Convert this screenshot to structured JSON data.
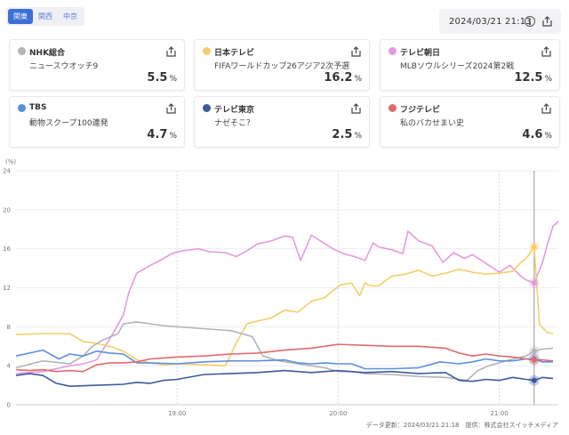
{
  "region_tabs": [
    {
      "label": "関東",
      "active": true
    },
    {
      "label": "関西",
      "active": false
    },
    {
      "label": "中京",
      "active": false
    }
  ],
  "timestamp": "2024/03/21 21:13",
  "icons": {
    "info": "info-icon",
    "share": "share-icon"
  },
  "channels": [
    {
      "name": "NHK総合",
      "program": "ニュースウオッチ9",
      "rating": "5.5",
      "unit": "%",
      "color": "#b4b4b9"
    },
    {
      "name": "日本テレビ",
      "program": "FIFAワールドカップ26アジア2次予選",
      "rating": "16.2",
      "unit": "%",
      "color": "#f5cf66"
    },
    {
      "name": "テレビ朝日",
      "program": "MLBソウルシリーズ2024第2戦",
      "rating": "12.5",
      "unit": "%",
      "color": "#e59add"
    },
    {
      "name": "TBS",
      "program": "動物スクープ100連発",
      "rating": "4.7",
      "unit": "%",
      "color": "#5b8fe0"
    },
    {
      "name": "テレビ東京",
      "program": "ナゼそこ？",
      "rating": "2.5",
      "unit": "%",
      "color": "#3d5a9e"
    },
    {
      "name": "フジテレビ",
      "program": "私のバカせまい史",
      "rating": "4.6",
      "unit": "%",
      "color": "#e06b6b"
    }
  ],
  "chart_data": {
    "type": "line",
    "ylabel": "(%)",
    "ylim": [
      0,
      24
    ],
    "yticks": [
      "0",
      "4",
      "8",
      "12",
      "16",
      "20",
      "24"
    ],
    "xticks": [
      {
        "label": "19:00",
        "t": 60
      },
      {
        "label": "20:00",
        "t": 120
      },
      {
        "label": "21:00",
        "t": 180
      }
    ],
    "x_range_minutes": [
      0,
      191
    ],
    "cursor_t": 193,
    "grid": true,
    "series": [
      {
        "name": "テレビ朝日",
        "color": "#e59add",
        "points": [
          [
            0,
            3.2
          ],
          [
            10,
            3.4
          ],
          [
            20,
            4.0
          ],
          [
            25,
            4.2
          ],
          [
            30,
            4.6
          ],
          [
            35,
            6.8
          ],
          [
            40,
            9.2
          ],
          [
            42,
            11.5
          ],
          [
            45,
            13.5
          ],
          [
            50,
            14.3
          ],
          [
            55,
            15.0
          ],
          [
            58,
            15.5
          ],
          [
            62,
            15.8
          ],
          [
            68,
            16.0
          ],
          [
            72,
            15.7
          ],
          [
            78,
            15.6
          ],
          [
            82,
            15.2
          ],
          [
            86,
            15.8
          ],
          [
            90,
            16.5
          ],
          [
            95,
            16.8
          ],
          [
            100,
            17.3
          ],
          [
            103,
            17.2
          ],
          [
            106,
            14.8
          ],
          [
            110,
            17.4
          ],
          [
            114,
            16.7
          ],
          [
            118,
            16.0
          ],
          [
            122,
            15.5
          ],
          [
            126,
            15.2
          ],
          [
            130,
            14.8
          ],
          [
            133,
            16.6
          ],
          [
            135,
            16.2
          ],
          [
            140,
            15.9
          ],
          [
            144,
            15.5
          ],
          [
            146,
            17.8
          ],
          [
            150,
            16.8
          ],
          [
            155,
            16.3
          ],
          [
            159,
            14.6
          ],
          [
            163,
            15.6
          ],
          [
            167,
            15.0
          ],
          [
            170,
            15.4
          ],
          [
            175,
            14.5
          ],
          [
            180,
            13.6
          ],
          [
            184,
            14.3
          ],
          [
            188,
            13.2
          ],
          [
            190,
            12.8
          ],
          [
            193,
            12.5
          ],
          [
            196,
            14.5
          ],
          [
            198,
            16.5
          ],
          [
            200,
            18.3
          ],
          [
            202,
            18.8
          ]
        ]
      },
      {
        "name": "日本テレビ",
        "color": "#f5cf66",
        "points": [
          [
            0,
            7.2
          ],
          [
            10,
            7.3
          ],
          [
            20,
            7.3
          ],
          [
            25,
            6.5
          ],
          [
            30,
            6.3
          ],
          [
            35,
            6.0
          ],
          [
            40,
            5.5
          ],
          [
            45,
            4.6
          ],
          [
            50,
            4.3
          ],
          [
            55,
            4.1
          ],
          [
            60,
            4.2
          ],
          [
            70,
            4.1
          ],
          [
            78,
            4.0
          ],
          [
            82,
            6.3
          ],
          [
            86,
            8.3
          ],
          [
            90,
            8.6
          ],
          [
            95,
            8.9
          ],
          [
            100,
            9.7
          ],
          [
            105,
            9.5
          ],
          [
            110,
            10.6
          ],
          [
            115,
            11.0
          ],
          [
            118,
            11.7
          ],
          [
            121,
            12.3
          ],
          [
            125,
            12.5
          ],
          [
            128,
            11.2
          ],
          [
            130,
            12.5
          ],
          [
            132,
            12.2
          ],
          [
            135,
            12.2
          ],
          [
            140,
            13.2
          ],
          [
            145,
            13.4
          ],
          [
            150,
            13.8
          ],
          [
            155,
            13.2
          ],
          [
            160,
            13.5
          ],
          [
            165,
            13.9
          ],
          [
            170,
            13.6
          ],
          [
            175,
            13.4
          ],
          [
            180,
            13.5
          ],
          [
            185,
            13.7
          ],
          [
            188,
            14.6
          ],
          [
            190,
            15.0
          ],
          [
            193,
            16.2
          ],
          [
            195,
            8.2
          ],
          [
            198,
            7.4
          ],
          [
            200,
            7.3
          ]
        ]
      },
      {
        "name": "NHK総合",
        "color": "#b4b4b9",
        "points": [
          [
            0,
            3.8
          ],
          [
            10,
            4.5
          ],
          [
            20,
            4.2
          ],
          [
            25,
            5.0
          ],
          [
            28,
            5.9
          ],
          [
            32,
            6.6
          ],
          [
            38,
            7.3
          ],
          [
            40,
            8.3
          ],
          [
            45,
            8.5
          ],
          [
            50,
            8.3
          ],
          [
            55,
            8.1
          ],
          [
            60,
            8.0
          ],
          [
            70,
            7.8
          ],
          [
            80,
            7.6
          ],
          [
            88,
            7.0
          ],
          [
            92,
            5.0
          ],
          [
            98,
            4.5
          ],
          [
            105,
            4.2
          ],
          [
            110,
            4.0
          ],
          [
            115,
            3.8
          ],
          [
            120,
            3.4
          ],
          [
            125,
            3.4
          ],
          [
            130,
            3.2
          ],
          [
            140,
            3.1
          ],
          [
            150,
            2.9
          ],
          [
            160,
            2.8
          ],
          [
            168,
            2.5
          ],
          [
            172,
            3.5
          ],
          [
            176,
            4.0
          ],
          [
            180,
            4.3
          ],
          [
            185,
            4.7
          ],
          [
            190,
            5.0
          ],
          [
            193,
            5.5
          ],
          [
            196,
            5.7
          ],
          [
            200,
            5.8
          ]
        ]
      },
      {
        "name": "TBS",
        "color": "#5b8fe0",
        "points": [
          [
            0,
            5.0
          ],
          [
            10,
            5.6
          ],
          [
            16,
            4.7
          ],
          [
            20,
            5.2
          ],
          [
            25,
            5.0
          ],
          [
            30,
            5.5
          ],
          [
            35,
            5.3
          ],
          [
            40,
            5.2
          ],
          [
            45,
            4.3
          ],
          [
            50,
            4.3
          ],
          [
            60,
            4.2
          ],
          [
            70,
            4.4
          ],
          [
            80,
            4.5
          ],
          [
            90,
            4.5
          ],
          [
            100,
            4.6
          ],
          [
            105,
            4.3
          ],
          [
            110,
            4.2
          ],
          [
            115,
            4.3
          ],
          [
            120,
            4.2
          ],
          [
            125,
            4.2
          ],
          [
            130,
            3.7
          ],
          [
            140,
            3.7
          ],
          [
            150,
            3.8
          ],
          [
            158,
            4.4
          ],
          [
            165,
            4.2
          ],
          [
            170,
            4.4
          ],
          [
            175,
            4.7
          ],
          [
            180,
            4.5
          ],
          [
            185,
            4.5
          ],
          [
            190,
            4.7
          ],
          [
            193,
            4.7
          ],
          [
            196,
            4.4
          ],
          [
            200,
            4.4
          ]
        ]
      },
      {
        "name": "フジテレビ",
        "color": "#e06b6b",
        "points": [
          [
            0,
            3.6
          ],
          [
            5,
            3.5
          ],
          [
            10,
            3.6
          ],
          [
            15,
            3.4
          ],
          [
            20,
            3.5
          ],
          [
            25,
            3.4
          ],
          [
            30,
            4.1
          ],
          [
            35,
            4.3
          ],
          [
            40,
            4.3
          ],
          [
            45,
            4.4
          ],
          [
            50,
            4.7
          ],
          [
            55,
            4.8
          ],
          [
            60,
            4.9
          ],
          [
            70,
            5.0
          ],
          [
            80,
            5.2
          ],
          [
            90,
            5.3
          ],
          [
            100,
            5.6
          ],
          [
            110,
            5.8
          ],
          [
            120,
            6.2
          ],
          [
            130,
            6.1
          ],
          [
            140,
            6.0
          ],
          [
            150,
            6.0
          ],
          [
            160,
            5.8
          ],
          [
            165,
            5.3
          ],
          [
            170,
            5.0
          ],
          [
            175,
            5.2
          ],
          [
            180,
            5.0
          ],
          [
            185,
            4.9
          ],
          [
            190,
            4.7
          ],
          [
            193,
            4.6
          ],
          [
            196,
            4.6
          ],
          [
            200,
            4.5
          ]
        ]
      },
      {
        "name": "テレビ東京",
        "color": "#3d5a9e",
        "points": [
          [
            0,
            3.0
          ],
          [
            5,
            3.2
          ],
          [
            10,
            3.0
          ],
          [
            15,
            2.2
          ],
          [
            20,
            1.9
          ],
          [
            30,
            2.0
          ],
          [
            40,
            2.1
          ],
          [
            45,
            2.3
          ],
          [
            50,
            2.2
          ],
          [
            55,
            2.5
          ],
          [
            60,
            2.6
          ],
          [
            70,
            3.1
          ],
          [
            80,
            3.2
          ],
          [
            90,
            3.3
          ],
          [
            100,
            3.5
          ],
          [
            110,
            3.3
          ],
          [
            120,
            3.5
          ],
          [
            130,
            3.3
          ],
          [
            140,
            3.4
          ],
          [
            150,
            3.2
          ],
          [
            160,
            3.3
          ],
          [
            165,
            2.5
          ],
          [
            170,
            2.4
          ],
          [
            175,
            2.6
          ],
          [
            180,
            2.5
          ],
          [
            185,
            2.8
          ],
          [
            190,
            2.6
          ],
          [
            193,
            2.5
          ],
          [
            196,
            2.8
          ],
          [
            200,
            2.7
          ]
        ]
      }
    ]
  },
  "footer": "データ更新：2024/03/21 21:18　提供：株式会社スイッチメディア"
}
